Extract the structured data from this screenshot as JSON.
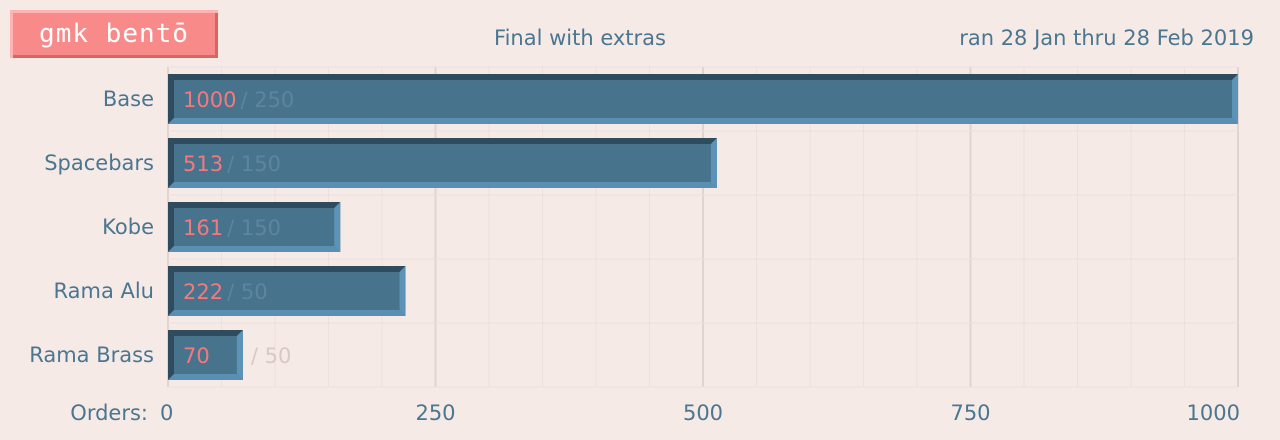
{
  "header": {
    "logo_text": "gmk bentō",
    "title": "Final with extras",
    "date_range": "ran 28 Jan thru 28 Feb 2019"
  },
  "chart_data": {
    "type": "bar",
    "orientation": "horizontal",
    "categories": [
      "Base",
      "Spacebars",
      "Kobe",
      "Rama Alu",
      "Rama Brass"
    ],
    "values": [
      1000,
      513,
      161,
      222,
      70
    ],
    "goals": [
      250,
      150,
      150,
      50,
      50
    ],
    "goal_labels": [
      "/ 250",
      "/ 150",
      "/ 150",
      "/ 50",
      "/ 50"
    ],
    "xlabel": "Orders:",
    "xlim": [
      0,
      1000
    ],
    "xticks": [
      0,
      250,
      500,
      750,
      1000
    ],
    "grid": true,
    "colors": {
      "bar_face": "#47738d",
      "bar_top": "#2f4c5e",
      "bar_right": "#5d93b6",
      "bar_bottom": "#5a8fb1",
      "value_text": "#f4797e",
      "goal_text_on_bar": "#5d859c",
      "goal_text_off_bar": "#d9c8c5",
      "grid_major": "#e1d3d0",
      "grid_minor": "#ecdfdc"
    }
  }
}
